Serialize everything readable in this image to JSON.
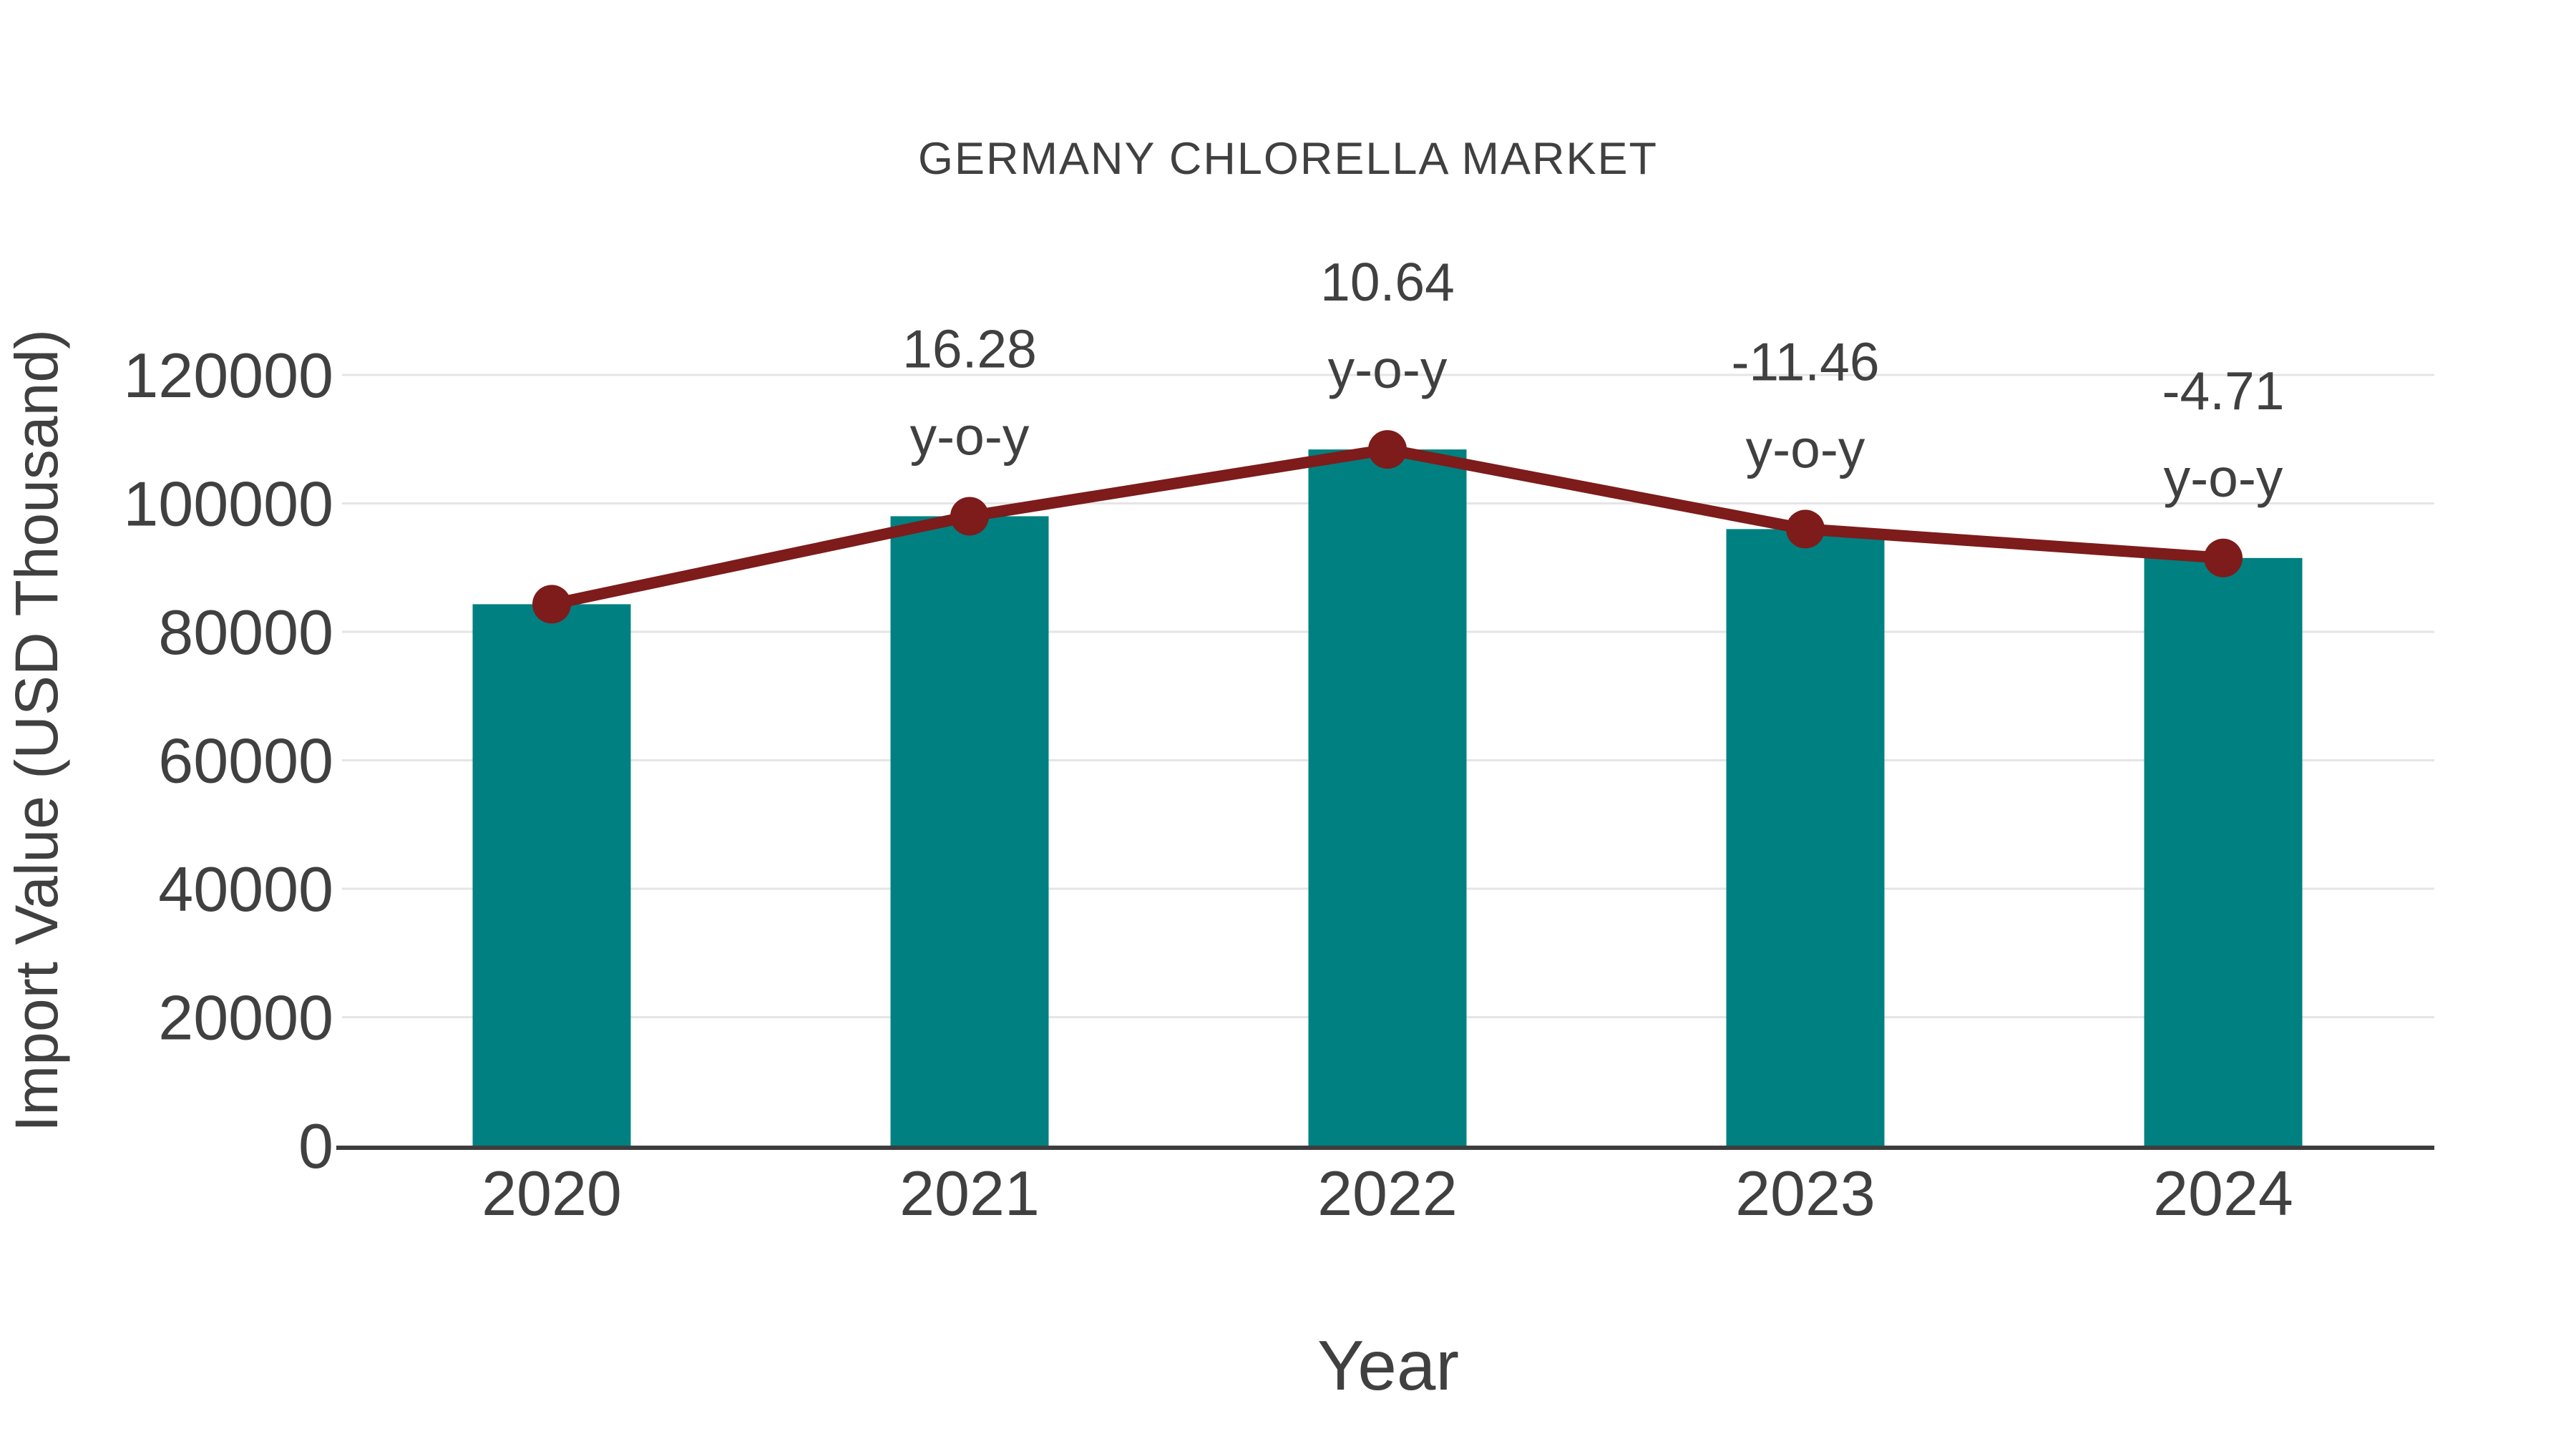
{
  "title": "GERMANY CHLORELLA MARKET",
  "colors": {
    "bar": "#008080",
    "line": "#7E1B1B",
    "marker": "#7E1B1B",
    "grid": "#E5E5E5",
    "axis": "#3D3D3D",
    "text": "#404040",
    "background": "#FFFFFF"
  },
  "chart_data": {
    "type": "bar",
    "title": "GERMANY CHLORELLA MARKET",
    "xlabel": "Year",
    "ylabel": "Import Value (USD Thousand)",
    "categories": [
      "2020",
      "2021",
      "2022",
      "2023",
      "2024"
    ],
    "series": [
      {
        "name": "Import Value (USD Thousand)",
        "type": "bar",
        "values": [
          84300,
          98000,
          108400,
          96000,
          91500
        ]
      },
      {
        "name": "y-o-y growth (%)",
        "type": "line",
        "values": [
          null,
          16.28,
          10.64,
          -11.46,
          -4.71
        ]
      }
    ],
    "ylim": [
      0,
      130000
    ],
    "yticks": [
      0,
      20000,
      40000,
      60000,
      80000,
      100000,
      120000
    ],
    "ytick_labels": [
      "0",
      "20000",
      "40000",
      "60000",
      "80000",
      "100000",
      "120000"
    ],
    "grid": true,
    "legend_position": "none",
    "annotations": [
      {
        "category": "2021",
        "value_label": "16.28",
        "suffix": "y-o-y"
      },
      {
        "category": "2022",
        "value_label": "10.64",
        "suffix": "y-o-y"
      },
      {
        "category": "2023",
        "value_label": "-11.46",
        "suffix": "y-o-y"
      },
      {
        "category": "2024",
        "value_label": "-4.71",
        "suffix": "y-o-y"
      }
    ]
  }
}
